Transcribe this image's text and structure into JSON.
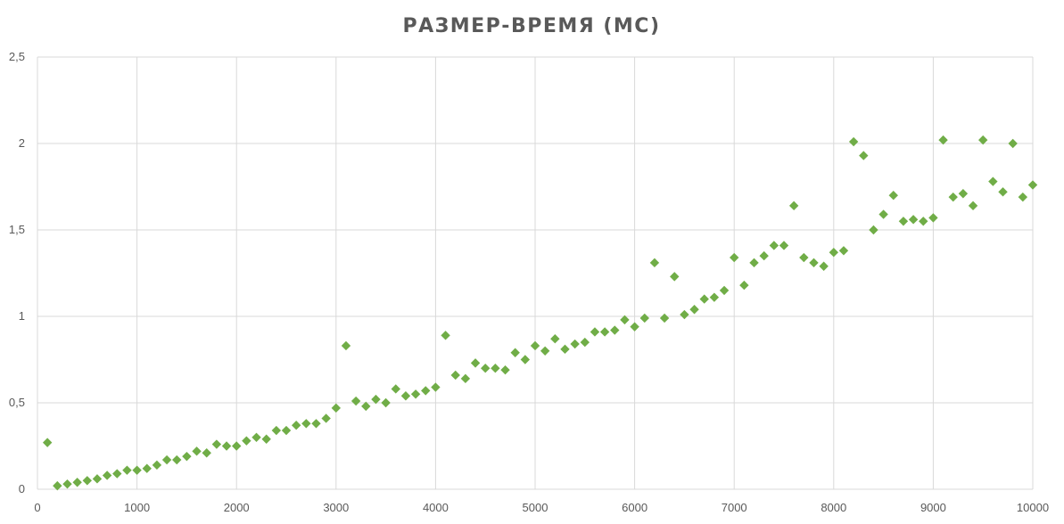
{
  "chart_data": {
    "type": "scatter",
    "title": "РАЗМЕР-ВРЕМЯ (МС)",
    "xlabel": "",
    "ylabel": "",
    "xlim": [
      0,
      10000
    ],
    "ylim": [
      0,
      2.5
    ],
    "x_ticks": [
      0,
      1000,
      2000,
      3000,
      4000,
      5000,
      6000,
      7000,
      8000,
      9000,
      10000
    ],
    "x_tick_labels": [
      "0",
      "1000",
      "2000",
      "3000",
      "4000",
      "5000",
      "6000",
      "7000",
      "8000",
      "9000",
      "10000"
    ],
    "y_ticks": [
      0,
      0.5,
      1,
      1.5,
      2,
      2.5
    ],
    "y_tick_labels": [
      "0",
      "0,5",
      "1",
      "1,5",
      "2",
      "2,5"
    ],
    "grid": true,
    "marker": "diamond",
    "color": "#70ad47",
    "series": [
      {
        "points": [
          [
            100,
            0.27
          ],
          [
            200,
            0.02
          ],
          [
            300,
            0.03
          ],
          [
            400,
            0.04
          ],
          [
            500,
            0.05
          ],
          [
            600,
            0.06
          ],
          [
            700,
            0.08
          ],
          [
            800,
            0.09
          ],
          [
            900,
            0.11
          ],
          [
            1000,
            0.11
          ],
          [
            1100,
            0.12
          ],
          [
            1200,
            0.14
          ],
          [
            1300,
            0.17
          ],
          [
            1400,
            0.17
          ],
          [
            1500,
            0.19
          ],
          [
            1600,
            0.22
          ],
          [
            1700,
            0.21
          ],
          [
            1800,
            0.26
          ],
          [
            1900,
            0.25
          ],
          [
            2000,
            0.25
          ],
          [
            2100,
            0.28
          ],
          [
            2200,
            0.3
          ],
          [
            2300,
            0.29
          ],
          [
            2400,
            0.34
          ],
          [
            2500,
            0.34
          ],
          [
            2600,
            0.37
          ],
          [
            2700,
            0.38
          ],
          [
            2800,
            0.38
          ],
          [
            2900,
            0.41
          ],
          [
            3000,
            0.47
          ],
          [
            3100,
            0.83
          ],
          [
            3200,
            0.51
          ],
          [
            3300,
            0.48
          ],
          [
            3400,
            0.52
          ],
          [
            3500,
            0.5
          ],
          [
            3600,
            0.58
          ],
          [
            3700,
            0.54
          ],
          [
            3800,
            0.55
          ],
          [
            3900,
            0.57
          ],
          [
            4000,
            0.59
          ],
          [
            4100,
            0.89
          ],
          [
            4200,
            0.66
          ],
          [
            4300,
            0.64
          ],
          [
            4400,
            0.73
          ],
          [
            4500,
            0.7
          ],
          [
            4600,
            0.7
          ],
          [
            4700,
            0.69
          ],
          [
            4800,
            0.79
          ],
          [
            4900,
            0.75
          ],
          [
            5000,
            0.83
          ],
          [
            5100,
            0.8
          ],
          [
            5200,
            0.87
          ],
          [
            5300,
            0.81
          ],
          [
            5400,
            0.84
          ],
          [
            5500,
            0.85
          ],
          [
            5600,
            0.91
          ],
          [
            5700,
            0.91
          ],
          [
            5800,
            0.92
          ],
          [
            5900,
            0.98
          ],
          [
            6000,
            0.94
          ],
          [
            6100,
            0.99
          ],
          [
            6200,
            1.31
          ],
          [
            6300,
            0.99
          ],
          [
            6400,
            1.23
          ],
          [
            6500,
            1.01
          ],
          [
            6600,
            1.04
          ],
          [
            6700,
            1.1
          ],
          [
            6800,
            1.11
          ],
          [
            6900,
            1.15
          ],
          [
            7000,
            1.34
          ],
          [
            7100,
            1.18
          ],
          [
            7200,
            1.31
          ],
          [
            7300,
            1.35
          ],
          [
            7400,
            1.41
          ],
          [
            7500,
            1.41
          ],
          [
            7600,
            1.64
          ],
          [
            7700,
            1.34
          ],
          [
            7800,
            1.31
          ],
          [
            7900,
            1.29
          ],
          [
            8000,
            1.37
          ],
          [
            8100,
            1.38
          ],
          [
            8200,
            2.01
          ],
          [
            8300,
            1.93
          ],
          [
            8400,
            1.5
          ],
          [
            8500,
            1.59
          ],
          [
            8600,
            1.7
          ],
          [
            8700,
            1.55
          ],
          [
            8800,
            1.56
          ],
          [
            8900,
            1.55
          ],
          [
            9000,
            1.57
          ],
          [
            9100,
            2.02
          ],
          [
            9200,
            1.69
          ],
          [
            9300,
            1.71
          ],
          [
            9400,
            1.64
          ],
          [
            9500,
            2.02
          ],
          [
            9600,
            1.78
          ],
          [
            9700,
            1.72
          ],
          [
            9800,
            2.0
          ],
          [
            9900,
            1.69
          ],
          [
            10000,
            1.76
          ]
        ]
      }
    ]
  }
}
